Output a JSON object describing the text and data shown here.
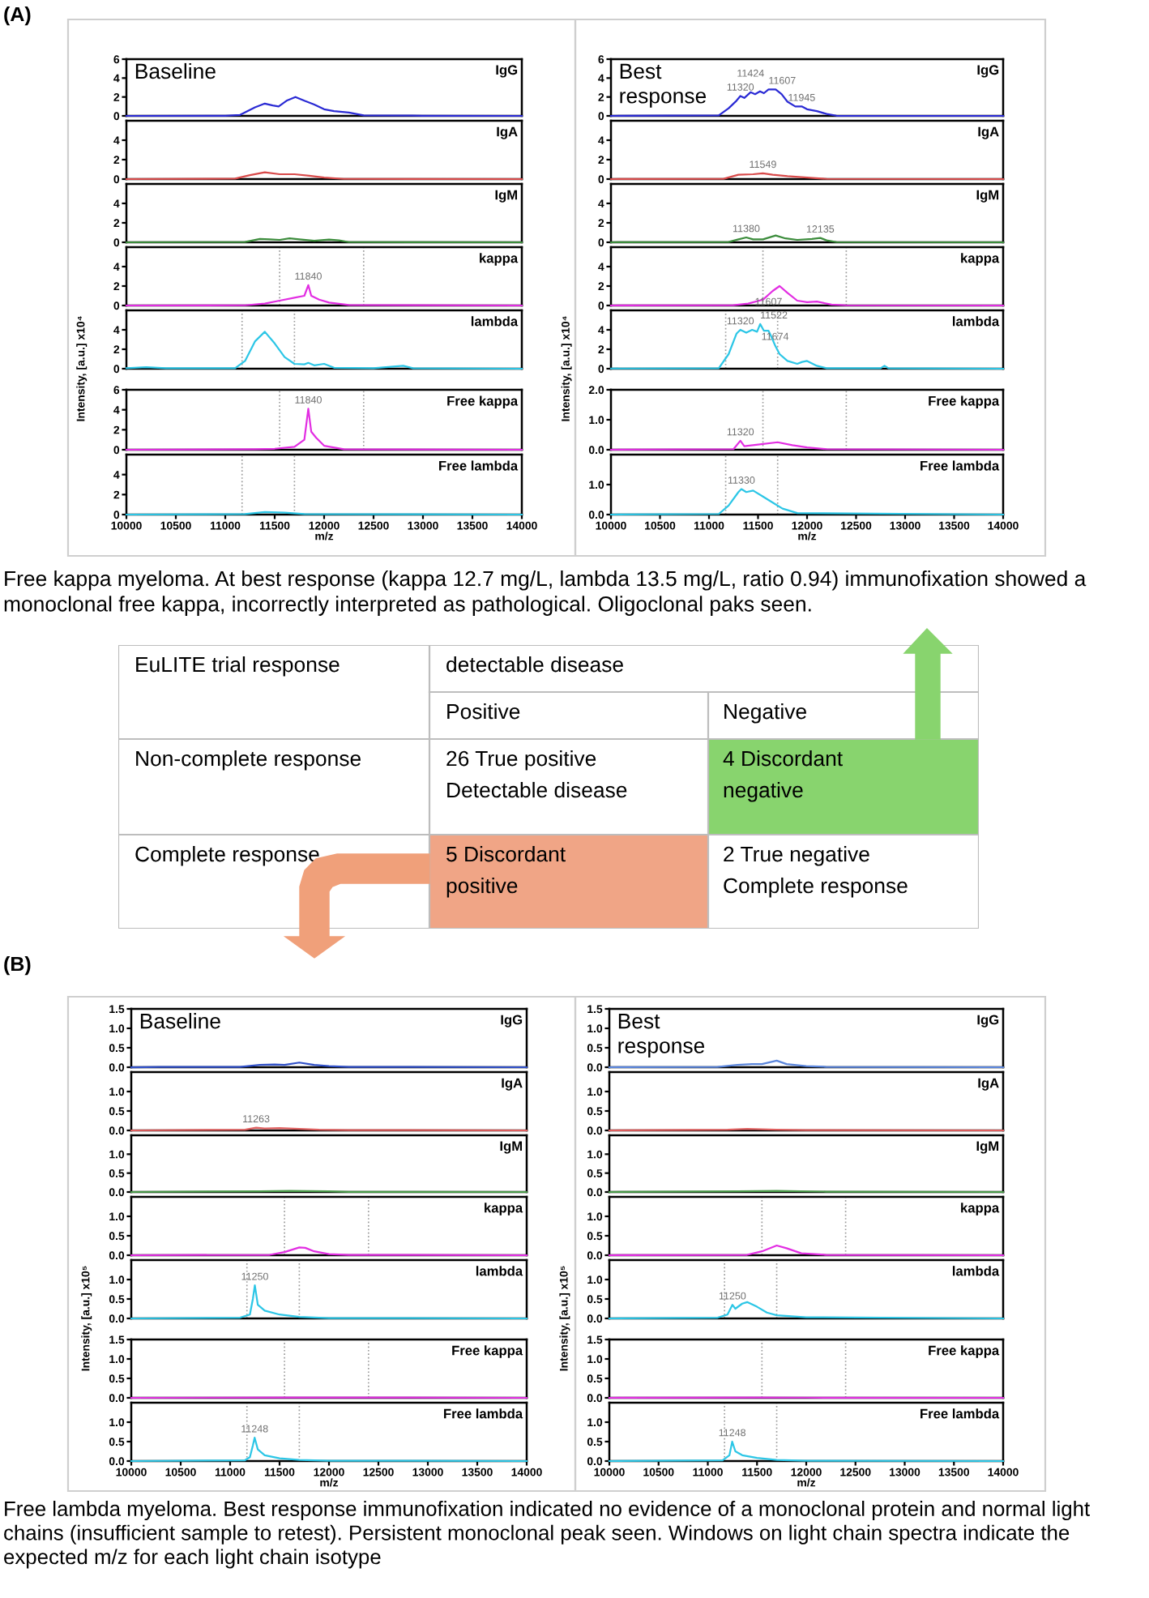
{
  "chart_data": [
    {
      "type": "line",
      "title": "IgG",
      "annotations": [
        "Baseline"
      ],
      "color": "#2a2ad4",
      "x": [
        10000,
        11000,
        11150,
        11300,
        11400,
        11480,
        11540,
        11620,
        11710,
        11800,
        11900,
        12000,
        12100,
        12250,
        12400,
        13000,
        14000
      ],
      "values": [
        0,
        0.02,
        0.1,
        0.9,
        1.3,
        1.1,
        1.0,
        1.6,
        2.0,
        1.6,
        1.2,
        0.7,
        0.5,
        0.35,
        0.05,
        0.02,
        0
      ],
      "xlim": [
        10000,
        14000
      ],
      "ylim": [
        0,
        6
      ],
      "yticks": [
        0,
        2,
        4,
        6
      ],
      "tick_labels": "y"
    },
    {
      "type": "line",
      "title": "IgA",
      "color": "#d84a4a",
      "x": [
        10000,
        11100,
        11250,
        11400,
        11550,
        11700,
        11850,
        12000,
        12200,
        14000
      ],
      "values": [
        0,
        0.05,
        0.4,
        0.7,
        0.5,
        0.5,
        0.35,
        0.15,
        0.02,
        0
      ],
      "xlim": [
        10000,
        14000
      ],
      "ylim": [
        0,
        6
      ],
      "yticks": [
        0,
        2,
        4
      ],
      "tick_labels": "y"
    },
    {
      "type": "line",
      "title": "IgM",
      "color": "#3c8c3c",
      "x": [
        10000,
        11200,
        11350,
        11450,
        11550,
        11650,
        11750,
        11900,
        12050,
        12150,
        12250,
        14000
      ],
      "values": [
        0,
        0.03,
        0.35,
        0.3,
        0.25,
        0.4,
        0.3,
        0.15,
        0.28,
        0.2,
        0.02,
        0
      ],
      "xlim": [
        10000,
        14000
      ],
      "ylim": [
        0,
        6
      ],
      "yticks": [
        0,
        2,
        4
      ],
      "tick_labels": "y"
    },
    {
      "type": "line",
      "title": "kappa",
      "color": "#e22ee2",
      "x": [
        10000,
        11200,
        11400,
        11550,
        11700,
        11800,
        11840,
        11870,
        11950,
        12050,
        12250,
        14000
      ],
      "values": [
        0,
        0.02,
        0.2,
        0.5,
        0.8,
        1.0,
        2.1,
        1.0,
        0.6,
        0.3,
        0.05,
        0
      ],
      "xlim": [
        10000,
        14000
      ],
      "ylim": [
        0,
        6
      ],
      "yticks": [
        0,
        2,
        4
      ],
      "tick_labels": "y",
      "annotations": [
        {
          "text": "11840",
          "x": 11840,
          "y": 2.1
        }
      ],
      "ref_lines": [
        {
          "axis": "x",
          "value": 11550,
          "color": "#9a9a9a",
          "line_style": "dotted"
        },
        {
          "axis": "x",
          "value": 12400,
          "color": "#9a9a9a",
          "line_style": "dotted"
        }
      ]
    },
    {
      "type": "line",
      "title": "lambda",
      "ylabel": "Intensity, [a.u.] x10⁴",
      "color": "#2cc6e6",
      "x": [
        10000,
        10200,
        10400,
        11100,
        11200,
        11300,
        11400,
        11500,
        11600,
        11700,
        11800,
        11840,
        11900,
        12000,
        12100,
        12500,
        12800,
        12900,
        14000
      ],
      "values": [
        0.05,
        0.15,
        0.05,
        0.05,
        0.8,
        2.8,
        3.8,
        2.6,
        1.2,
        0.5,
        0.45,
        0.6,
        0.35,
        0.5,
        0.1,
        0.05,
        0.3,
        0.05,
        0
      ],
      "xlim": [
        10000,
        14000
      ],
      "ylim": [
        0,
        6
      ],
      "yticks": [
        0,
        2,
        4
      ],
      "tick_labels": "y",
      "ref_lines": [
        {
          "axis": "x",
          "value": 11170,
          "color": "#9a9a9a",
          "line_style": "dotted"
        },
        {
          "axis": "x",
          "value": 11700,
          "color": "#9a9a9a",
          "line_style": "dotted"
        }
      ]
    },
    {
      "type": "line",
      "title": "Free kappa",
      "color": "#e22ee2",
      "x": [
        10000,
        11300,
        11500,
        11700,
        11800,
        11840,
        11870,
        11920,
        12000,
        12200,
        14000
      ],
      "values": [
        0,
        0.05,
        0.1,
        0.3,
        1.0,
        4.1,
        1.8,
        1.2,
        0.4,
        0.05,
        0
      ],
      "xlim": [
        10000,
        14000
      ],
      "ylim": [
        0,
        6
      ],
      "yticks": [
        0,
        2,
        4,
        6
      ],
      "tick_labels": "y",
      "annotations": [
        {
          "text": "11840",
          "x": 11840,
          "y": 4.1
        }
      ],
      "ref_lines": [
        {
          "axis": "x",
          "value": 11550,
          "color": "#9a9a9a",
          "line_style": "dotted"
        },
        {
          "axis": "x",
          "value": 12400,
          "color": "#9a9a9a",
          "line_style": "dotted"
        }
      ]
    },
    {
      "type": "line",
      "title": "Free lambda",
      "xlabel": "m/z",
      "color": "#2cc6e6",
      "x": [
        10000,
        11200,
        11400,
        11600,
        11800,
        14000
      ],
      "values": [
        0,
        0.05,
        0.25,
        0.2,
        0.05,
        0
      ],
      "xlim": [
        10000,
        14000
      ],
      "xticks": [
        10000,
        10500,
        11000,
        11500,
        12000,
        12500,
        13000,
        13500,
        14000
      ],
      "ylim": [
        0,
        6
      ],
      "yticks": [
        0,
        2,
        4
      ],
      "ref_lines": [
        {
          "axis": "x",
          "value": 11170,
          "color": "#9a9a9a",
          "line_style": "dotted"
        },
        {
          "axis": "x",
          "value": 11700,
          "color": "#9a9a9a",
          "line_style": "dotted"
        }
      ]
    },
    {
      "type": "line",
      "title": "IgG",
      "annotations": [
        "Best\nresponse",
        {
          "text": "11320",
          "x": 11320,
          "y": 2.1
        },
        {
          "text": "11424",
          "x": 11424,
          "y": 2.5
        },
        {
          "text": "11607",
          "x": 11607,
          "y": 2.8
        },
        {
          "text": "11945",
          "x": 11945,
          "y": 1.0
        }
      ],
      "color": "#2a2ad4",
      "x": [
        10000,
        11100,
        11200,
        11280,
        11320,
        11360,
        11424,
        11470,
        11520,
        11560,
        11607,
        11680,
        11740,
        11800,
        11880,
        11945,
        12000,
        12100,
        12200,
        12300,
        14000
      ],
      "values": [
        0,
        0.05,
        0.8,
        1.6,
        2.1,
        1.9,
        2.5,
        2.3,
        2.6,
        2.4,
        2.8,
        2.8,
        2.3,
        1.5,
        1.0,
        1.0,
        0.7,
        0.5,
        0.2,
        0.02,
        0
      ],
      "xlim": [
        10000,
        14000
      ],
      "ylim": [
        0,
        6
      ],
      "yticks": [
        0,
        2,
        4,
        6
      ],
      "tick_labels": "y"
    },
    {
      "type": "line",
      "title": "IgA",
      "annotations": [
        {
          "text": "11549",
          "x": 11549,
          "y": 0.6
        }
      ],
      "color": "#d84a4a",
      "x": [
        10000,
        11150,
        11300,
        11450,
        11549,
        11650,
        11800,
        12000,
        12200,
        14000
      ],
      "values": [
        0,
        0.03,
        0.45,
        0.5,
        0.6,
        0.45,
        0.3,
        0.15,
        0.02,
        0
      ],
      "xlim": [
        10000,
        14000
      ],
      "ylim": [
        0,
        6
      ],
      "yticks": [
        0,
        2,
        4
      ],
      "tick_labels": "y"
    },
    {
      "type": "line",
      "title": "IgM",
      "annotations": [
        {
          "text": "11380",
          "x": 11380,
          "y": 0.5
        },
        {
          "text": "12135",
          "x": 12135,
          "y": 0.45
        }
      ],
      "color": "#3c8c3c",
      "x": [
        10000,
        11200,
        11300,
        11380,
        11450,
        11550,
        11680,
        11780,
        11900,
        12050,
        12135,
        12200,
        12300,
        14000
      ],
      "values": [
        0,
        0.03,
        0.3,
        0.5,
        0.3,
        0.3,
        0.7,
        0.4,
        0.25,
        0.35,
        0.45,
        0.2,
        0.02,
        0
      ],
      "xlim": [
        10000,
        14000
      ],
      "ylim": [
        0,
        6
      ],
      "yticks": [
        0,
        2,
        4
      ],
      "tick_labels": "y"
    },
    {
      "type": "line",
      "title": "kappa",
      "color": "#e22ee2",
      "x": [
        10000,
        11250,
        11400,
        11550,
        11650,
        11720,
        11800,
        11900,
        12000,
        12100,
        12250,
        12400,
        14000
      ],
      "values": [
        0,
        0.03,
        0.2,
        0.6,
        1.5,
        2.0,
        1.3,
        0.5,
        0.35,
        0.4,
        0.1,
        0.02,
        0
      ],
      "xlim": [
        10000,
        14000
      ],
      "ylim": [
        0,
        6
      ],
      "yticks": [
        0,
        2,
        4
      ],
      "tick_labels": "y",
      "ref_lines": [
        {
          "axis": "x",
          "value": 11550,
          "color": "#9a9a9a",
          "line_style": "dotted"
        },
        {
          "axis": "x",
          "value": 12400,
          "color": "#9a9a9a",
          "line_style": "dotted"
        }
      ]
    },
    {
      "type": "line",
      "title": "lambda",
      "ylabel": "Intensity, [a.u.] x10⁴",
      "annotations": [
        {
          "text": "11320",
          "x": 11320,
          "y": 4.0
        },
        {
          "text": "11522",
          "x": 11522,
          "y": 4.6
        },
        {
          "text": "11607",
          "x": 11607,
          "y": 3.9
        },
        {
          "text": "11674",
          "x": 11674,
          "y": 2.4
        }
      ],
      "color": "#2cc6e6",
      "x": [
        10000,
        11100,
        11200,
        11280,
        11320,
        11380,
        11440,
        11490,
        11522,
        11560,
        11607,
        11640,
        11674,
        11720,
        11800,
        11900,
        11950,
        12000,
        12100,
        12200,
        12750,
        12790,
        12830,
        14000
      ],
      "values": [
        0.02,
        0.05,
        1.5,
        3.6,
        4.0,
        3.7,
        4.0,
        3.8,
        4.6,
        3.9,
        3.9,
        3.2,
        2.4,
        1.5,
        0.8,
        0.5,
        0.7,
        0.8,
        0.3,
        0.05,
        0.05,
        0.3,
        0.05,
        0
      ],
      "xlim": [
        10000,
        14000
      ],
      "ylim": [
        0,
        6
      ],
      "yticks": [
        0,
        2,
        4
      ],
      "tick_labels": "y",
      "ref_lines": [
        {
          "axis": "x",
          "value": 11170,
          "color": "#9a9a9a",
          "line_style": "dotted"
        },
        {
          "axis": "x",
          "value": 11700,
          "color": "#9a9a9a",
          "line_style": "dotted"
        }
      ]
    },
    {
      "type": "line",
      "title": "Free kappa",
      "annotations": [
        {
          "text": "11320",
          "x": 11320,
          "y": 0.3
        }
      ],
      "color": "#e22ee2",
      "x": [
        10000,
        11250,
        11320,
        11360,
        11500,
        11700,
        11850,
        12000,
        12200,
        14000
      ],
      "values": [
        0,
        0.02,
        0.3,
        0.12,
        0.17,
        0.25,
        0.15,
        0.08,
        0.02,
        0
      ],
      "xlim": [
        10000,
        14000
      ],
      "ylim": [
        0,
        2
      ],
      "yticks": [
        {
          "value": 0,
          "label": "0.0"
        },
        {
          "value": 1,
          "label": "1.0"
        },
        {
          "value": 2,
          "label": "2.0"
        }
      ],
      "tick_labels": "y",
      "ref_lines": [
        {
          "axis": "x",
          "value": 11550,
          "color": "#9a9a9a",
          "line_style": "dotted"
        },
        {
          "axis": "x",
          "value": 12400,
          "color": "#9a9a9a",
          "line_style": "dotted"
        }
      ]
    },
    {
      "type": "line",
      "title": "Free lambda",
      "xlabel": "m/z",
      "annotations": [
        {
          "text": "11330",
          "x": 11330,
          "y": 0.85
        }
      ],
      "color": "#2cc6e6",
      "x": [
        10000,
        11100,
        11200,
        11300,
        11330,
        11380,
        11450,
        11550,
        11650,
        11750,
        11900,
        14000
      ],
      "values": [
        0,
        0.02,
        0.3,
        0.75,
        0.85,
        0.75,
        0.8,
        0.6,
        0.4,
        0.2,
        0.05,
        0
      ],
      "xlim": [
        10000,
        14000
      ],
      "xticks": [
        10000,
        10500,
        11000,
        11500,
        12000,
        12500,
        13000,
        13500,
        14000
      ],
      "ylim": [
        0,
        2
      ],
      "yticks": [
        {
          "value": 0,
          "label": "0.0"
        },
        {
          "value": 1,
          "label": "1.0"
        }
      ],
      "ref_lines": [
        {
          "axis": "x",
          "value": 11170,
          "color": "#9a9a9a",
          "line_style": "dotted"
        },
        {
          "axis": "x",
          "value": 11700,
          "color": "#9a9a9a",
          "line_style": "dotted"
        }
      ]
    },
    {
      "type": "other",
      "annotations": [
        "(A)",
        "Free kappa myeloma. At best response (kappa 12.7 mg/L, lambda 13.5 mg/L, ratio 0.94) immunofixation showed a monoclonal free kappa, incorrectly interpreted as pathological. Oligoclonal paks seen.",
        "EuLITE trial response",
        "detectable disease",
        "Positive",
        "Negative",
        "Non-complete response",
        "26 True positive\nDetectable disease",
        "4 Discordant\nnegative",
        "Complete response",
        "5 Discordant\npositive",
        "2 True negative\nComplete response",
        "(B)",
        "Free lambda myeloma. Best response immunofixation indicated no evidence of a monoclonal protein and normal light chains (insufficient sample to retest). Persistent monoclonal peak seen. Windows on light chain spectra indicate the expected m/z for each light chain isotype"
      ]
    },
    {
      "type": "line",
      "title": "IgG",
      "annotations": [
        "Baseline"
      ],
      "color": "#3050c8",
      "x": [
        10000,
        10300,
        11100,
        11300,
        11450,
        11550,
        11700,
        11850,
        12000,
        12200,
        14000
      ],
      "values": [
        0,
        0.01,
        0.01,
        0.06,
        0.07,
        0.06,
        0.12,
        0.06,
        0.03,
        0.01,
        0
      ],
      "xlim": [
        10000,
        14000
      ],
      "ylim": [
        0,
        1.5
      ],
      "yticks": [
        {
          "value": 0,
          "label": "0.0"
        },
        {
          "value": 0.5,
          "label": "0.5"
        },
        {
          "value": 1,
          "label": "1.0"
        },
        {
          "value": 1.5,
          "label": "1.5"
        }
      ],
      "tick_labels": "y"
    },
    {
      "type": "line",
      "title": "IgA",
      "annotations": [
        {
          "text": "11263",
          "x": 11263,
          "y": 0.07
        }
      ],
      "color": "#e06060",
      "x": [
        10000,
        11150,
        11263,
        11350,
        11500,
        11700,
        11900,
        12200,
        14000
      ],
      "values": [
        0,
        0.02,
        0.07,
        0.05,
        0.06,
        0.04,
        0.02,
        0.01,
        0
      ],
      "xlim": [
        10000,
        14000
      ],
      "ylim": [
        0,
        1.5
      ],
      "yticks": [
        {
          "value": 0,
          "label": "0.0"
        },
        {
          "value": 0.5,
          "label": "0.5"
        },
        {
          "value": 1,
          "label": "1.0"
        }
      ],
      "tick_labels": "y"
    },
    {
      "type": "line",
      "title": "IgM",
      "color": "#4a9a4a",
      "x": [
        10000,
        11300,
        11600,
        12000,
        12200,
        14000
      ],
      "values": [
        0,
        0.02,
        0.03,
        0.02,
        0.005,
        0
      ],
      "xlim": [
        10000,
        14000
      ],
      "ylim": [
        0,
        1.5
      ],
      "yticks": [
        {
          "value": 0,
          "label": "0.0"
        },
        {
          "value": 0.5,
          "label": "0.5"
        },
        {
          "value": 1,
          "label": "1.0"
        }
      ],
      "tick_labels": "y"
    },
    {
      "type": "line",
      "title": "kappa",
      "color": "#e22ee2",
      "x": [
        10000,
        11400,
        11550,
        11700,
        11760,
        11850,
        12000,
        12200,
        14000
      ],
      "values": [
        0,
        0.01,
        0.08,
        0.2,
        0.19,
        0.1,
        0.03,
        0.01,
        0
      ],
      "xlim": [
        10000,
        14000
      ],
      "ylim": [
        0,
        1.5
      ],
      "yticks": [
        {
          "value": 0,
          "label": "0.0"
        },
        {
          "value": 0.5,
          "label": "0.5"
        },
        {
          "value": 1,
          "label": "1.0"
        }
      ],
      "tick_labels": "y",
      "ref_lines": [
        {
          "axis": "x",
          "value": 11550,
          "color": "#9a9a9a",
          "line_style": "dotted"
        },
        {
          "axis": "x",
          "value": 12400,
          "color": "#9a9a9a",
          "line_style": "dotted"
        }
      ]
    },
    {
      "type": "line",
      "title": "lambda",
      "ylabel": "Intensity, [a.u.] x10⁵",
      "annotations": [
        {
          "text": "11250",
          "x": 11250,
          "y": 0.85
        }
      ],
      "color": "#2cc6e6",
      "x": [
        10000,
        11100,
        11200,
        11230,
        11250,
        11280,
        11350,
        11500,
        11700,
        12000,
        14000
      ],
      "values": [
        0,
        0.02,
        0.1,
        0.5,
        0.85,
        0.35,
        0.2,
        0.1,
        0.04,
        0.01,
        0
      ],
      "xlim": [
        10000,
        14000
      ],
      "ylim": [
        0,
        1.5
      ],
      "yticks": [
        {
          "value": 0,
          "label": "0.0"
        },
        {
          "value": 0.5,
          "label": "0.5"
        },
        {
          "value": 1,
          "label": "1.0"
        }
      ],
      "tick_labels": "y",
      "ref_lines": [
        {
          "axis": "x",
          "value": 11170,
          "color": "#9a9a9a",
          "line_style": "dotted"
        },
        {
          "axis": "x",
          "value": 11700,
          "color": "#9a9a9a",
          "line_style": "dotted"
        }
      ]
    },
    {
      "type": "line",
      "title": "Free kappa",
      "color": "#e22ee2",
      "x": [
        10000,
        11500,
        12000,
        14000
      ],
      "values": [
        0,
        0.01,
        0.01,
        0
      ],
      "xlim": [
        10000,
        14000
      ],
      "ylim": [
        0,
        1.5
      ],
      "yticks": [
        {
          "value": 0,
          "label": "0.0"
        },
        {
          "value": 0.5,
          "label": "0.5"
        },
        {
          "value": 1,
          "label": "1.0"
        },
        {
          "value": 1.5,
          "label": "1.5"
        }
      ],
      "tick_labels": "y",
      "ref_lines": [
        {
          "axis": "x",
          "value": 11550,
          "color": "#9a9a9a",
          "line_style": "dotted"
        },
        {
          "axis": "x",
          "value": 12400,
          "color": "#9a9a9a",
          "line_style": "dotted"
        }
      ]
    },
    {
      "type": "line",
      "title": "Free lambda",
      "xlabel": "m/z",
      "annotations": [
        {
          "text": "11248",
          "x": 11248,
          "y": 0.6
        }
      ],
      "color": "#2cc6e6",
      "x": [
        10000,
        11150,
        11200,
        11230,
        11248,
        11280,
        11350,
        11500,
        11700,
        12000,
        14000
      ],
      "values": [
        0,
        0.02,
        0.1,
        0.4,
        0.6,
        0.3,
        0.15,
        0.07,
        0.03,
        0.01,
        0
      ],
      "xlim": [
        10000,
        14000
      ],
      "xticks": [
        10000,
        10500,
        11000,
        11500,
        12000,
        12500,
        13000,
        13500,
        14000
      ],
      "ylim": [
        0,
        1.5
      ],
      "yticks": [
        {
          "value": 0,
          "label": "0.0"
        },
        {
          "value": 0.5,
          "label": "0.5"
        },
        {
          "value": 1,
          "label": "1.0"
        }
      ],
      "ref_lines": [
        {
          "axis": "x",
          "value": 11170,
          "color": "#9a9a9a",
          "line_style": "dotted"
        },
        {
          "axis": "x",
          "value": 11700,
          "color": "#9a9a9a",
          "line_style": "dotted"
        }
      ]
    },
    {
      "type": "line",
      "title": "IgG",
      "annotations": [
        "Best\nresponse"
      ],
      "color": "#5b86dc",
      "x": [
        10000,
        11100,
        11300,
        11450,
        11550,
        11700,
        11800,
        12000,
        12200,
        14000
      ],
      "values": [
        0,
        0.01,
        0.06,
        0.08,
        0.08,
        0.17,
        0.08,
        0.03,
        0.01,
        0
      ],
      "xlim": [
        10000,
        14000
      ],
      "ylim": [
        0,
        1.5
      ],
      "yticks": [
        {
          "value": 0,
          "label": "0.0"
        },
        {
          "value": 0.5,
          "label": "0.5"
        },
        {
          "value": 1,
          "label": "1.0"
        },
        {
          "value": 1.5,
          "label": "1.5"
        }
      ],
      "tick_labels": "y"
    },
    {
      "type": "line",
      "title": "IgA",
      "color": "#e06060",
      "x": [
        10000,
        11200,
        11400,
        11700,
        12000,
        14000
      ],
      "values": [
        0,
        0.02,
        0.04,
        0.02,
        0.01,
        0
      ],
      "xlim": [
        10000,
        14000
      ],
      "ylim": [
        0,
        1.5
      ],
      "yticks": [
        {
          "value": 0,
          "label": "0.0"
        },
        {
          "value": 0.5,
          "label": "0.5"
        },
        {
          "value": 1,
          "label": "1.0"
        }
      ],
      "tick_labels": "y"
    },
    {
      "type": "line",
      "title": "IgM",
      "color": "#4a9a4a",
      "x": [
        10000,
        11300,
        11700,
        12200,
        14000
      ],
      "values": [
        0,
        0.02,
        0.03,
        0.01,
        0
      ],
      "xlim": [
        10000,
        14000
      ],
      "ylim": [
        0,
        1.5
      ],
      "yticks": [
        {
          "value": 0,
          "label": "0.0"
        },
        {
          "value": 0.5,
          "label": "0.5"
        },
        {
          "value": 1,
          "label": "1.0"
        }
      ],
      "tick_labels": "y"
    },
    {
      "type": "line",
      "title": "kappa",
      "color": "#e22ee2",
      "x": [
        10000,
        11400,
        11550,
        11700,
        11800,
        11950,
        12200,
        14000
      ],
      "values": [
        0,
        0.01,
        0.1,
        0.25,
        0.18,
        0.05,
        0.01,
        0
      ],
      "xlim": [
        10000,
        14000
      ],
      "ylim": [
        0,
        1.5
      ],
      "yticks": [
        {
          "value": 0,
          "label": "0.0"
        },
        {
          "value": 0.5,
          "label": "0.5"
        },
        {
          "value": 1,
          "label": "1.0"
        }
      ],
      "tick_labels": "y",
      "ref_lines": [
        {
          "axis": "x",
          "value": 11550,
          "color": "#9a9a9a",
          "line_style": "dotted"
        },
        {
          "axis": "x",
          "value": 12400,
          "color": "#9a9a9a",
          "line_style": "dotted"
        }
      ]
    },
    {
      "type": "line",
      "title": "lambda",
      "ylabel": "Intensity, [a.u.] x10⁵",
      "annotations": [
        {
          "text": "11250",
          "x": 11250,
          "y": 0.35
        }
      ],
      "color": "#2cc6e6",
      "x": [
        10000,
        11100,
        11200,
        11250,
        11280,
        11350,
        11400,
        11500,
        11600,
        11700,
        12000,
        14000
      ],
      "values": [
        0,
        0.02,
        0.1,
        0.35,
        0.25,
        0.38,
        0.42,
        0.3,
        0.15,
        0.08,
        0.03,
        0
      ],
      "xlim": [
        10000,
        14000
      ],
      "ylim": [
        0,
        1.5
      ],
      "yticks": [
        {
          "value": 0,
          "label": "0.0"
        },
        {
          "value": 0.5,
          "label": "0.5"
        },
        {
          "value": 1,
          "label": "1.0"
        }
      ],
      "tick_labels": "y",
      "ref_lines": [
        {
          "axis": "x",
          "value": 11170,
          "color": "#9a9a9a",
          "line_style": "dotted"
        },
        {
          "axis": "x",
          "value": 11700,
          "color": "#9a9a9a",
          "line_style": "dotted"
        }
      ]
    },
    {
      "type": "line",
      "title": "Free kappa",
      "color": "#e22ee2",
      "x": [
        10000,
        11500,
        12000,
        14000
      ],
      "values": [
        0,
        0.01,
        0.005,
        0
      ],
      "xlim": [
        10000,
        14000
      ],
      "ylim": [
        0,
        1.5
      ],
      "yticks": [
        {
          "value": 0,
          "label": "0.0"
        },
        {
          "value": 0.5,
          "label": "0.5"
        },
        {
          "value": 1,
          "label": "1.0"
        },
        {
          "value": 1.5,
          "label": "1.5"
        }
      ],
      "tick_labels": "y",
      "ref_lines": [
        {
          "axis": "x",
          "value": 11550,
          "color": "#9a9a9a",
          "line_style": "dotted"
        },
        {
          "axis": "x",
          "value": 12400,
          "color": "#9a9a9a",
          "line_style": "dotted"
        }
      ]
    },
    {
      "type": "line",
      "title": "Free lambda",
      "xlabel": "m/z",
      "annotations": [
        {
          "text": "11248",
          "x": 11248,
          "y": 0.5
        }
      ],
      "color": "#2cc6e6",
      "x": [
        10000,
        11150,
        11220,
        11248,
        11280,
        11350,
        11500,
        11700,
        12000,
        14000
      ],
      "values": [
        0,
        0.02,
        0.15,
        0.5,
        0.25,
        0.15,
        0.08,
        0.03,
        0.01,
        0
      ],
      "xlim": [
        10000,
        14000
      ],
      "xticks": [
        10000,
        10500,
        11000,
        11500,
        12000,
        12500,
        13000,
        13500,
        14000
      ],
      "ylim": [
        0,
        1.5
      ],
      "yticks": [
        {
          "value": 0,
          "label": "0.0"
        },
        {
          "value": 0.5,
          "label": "0.5"
        },
        {
          "value": 1,
          "label": "1.0"
        }
      ],
      "ref_lines": [
        {
          "axis": "x",
          "value": 11170,
          "color": "#9a9a9a",
          "line_style": "dotted"
        },
        {
          "axis": "x",
          "value": 11700,
          "color": "#9a9a9a",
          "line_style": "dotted"
        }
      ]
    }
  ]
}
